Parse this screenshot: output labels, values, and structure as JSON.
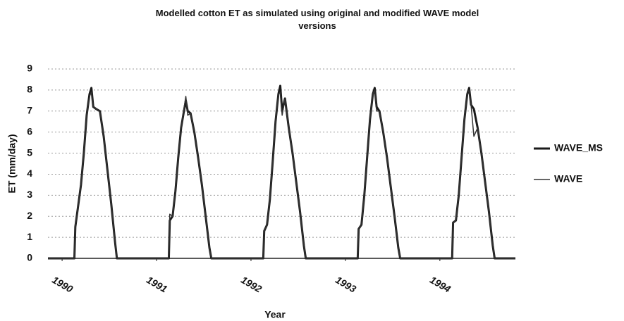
{
  "chart_data": {
    "type": "line",
    "title": "Modelled cotton ET as simulated using original and modified WAVE model versions",
    "y_label": "ET (mm/day)",
    "x_label": "Year",
    "x": [
      1989.85,
      1990.13,
      1990.14,
      1990.17,
      1990.2,
      1990.23,
      1990.26,
      1990.29,
      1990.31,
      1990.33,
      1990.36,
      1990.4,
      1990.44,
      1990.48,
      1990.52,
      1990.56,
      1990.58,
      1991.13,
      1991.14,
      1991.17,
      1991.2,
      1991.23,
      1991.26,
      1991.29,
      1991.31,
      1991.33,
      1991.36,
      1991.4,
      1991.44,
      1991.48,
      1991.52,
      1991.56,
      1991.58,
      1992.13,
      1992.14,
      1992.17,
      1992.2,
      1992.23,
      1992.26,
      1992.29,
      1992.31,
      1992.33,
      1992.36,
      1992.4,
      1992.44,
      1992.48,
      1992.52,
      1992.56,
      1992.58,
      1993.13,
      1993.14,
      1993.17,
      1993.2,
      1993.23,
      1993.26,
      1993.29,
      1993.31,
      1993.33,
      1993.36,
      1993.4,
      1993.44,
      1993.48,
      1993.52,
      1993.56,
      1993.58,
      1994.13,
      1994.14,
      1994.17,
      1994.2,
      1994.23,
      1994.26,
      1994.29,
      1994.31,
      1994.33,
      1994.36,
      1994.4,
      1994.44,
      1994.48,
      1994.52,
      1994.56,
      1994.58,
      1994.8
    ],
    "series": [
      {
        "name": "WAVE_MS",
        "color": "#1a1a1a",
        "values": [
          0,
          0,
          1.5,
          2.5,
          3.5,
          5,
          6.8,
          7.8,
          8.1,
          7.2,
          7.1,
          7.0,
          5.8,
          4.2,
          2.6,
          0.8,
          0,
          0,
          1.8,
          2.0,
          3.2,
          4.8,
          6.2,
          7.0,
          7.5,
          7.0,
          6.9,
          6.0,
          4.8,
          3.5,
          2.0,
          0.5,
          0,
          0,
          1.3,
          1.6,
          2.8,
          4.6,
          6.5,
          7.8,
          8.2,
          7.0,
          7.6,
          6.2,
          5.0,
          3.6,
          2.2,
          0.6,
          0,
          0,
          1.4,
          1.6,
          3.0,
          4.8,
          6.6,
          7.8,
          8.1,
          7.2,
          7.0,
          6.0,
          4.8,
          3.4,
          2.0,
          0.5,
          0,
          0,
          1.7,
          1.8,
          3.0,
          4.8,
          6.6,
          7.8,
          8.1,
          7.3,
          7.1,
          6.2,
          5.0,
          3.6,
          2.2,
          0.6,
          0,
          0
        ]
      },
      {
        "name": "WAVE",
        "color": "#333333",
        "values": [
          0,
          0,
          1.5,
          2.5,
          3.5,
          5,
          6.8,
          7.7,
          7.9,
          7.2,
          7.1,
          7.0,
          5.8,
          4.2,
          2.6,
          0.8,
          0,
          0,
          2.1,
          2.0,
          3.2,
          4.8,
          6.2,
          7.1,
          7.7,
          6.8,
          6.9,
          6.0,
          4.8,
          3.5,
          2.0,
          0.5,
          0,
          0,
          1.3,
          1.6,
          2.8,
          4.6,
          6.5,
          7.8,
          7.9,
          6.8,
          7.6,
          6.2,
          5.0,
          3.6,
          2.2,
          0.6,
          0,
          0,
          1.4,
          1.6,
          3.0,
          4.8,
          6.6,
          7.8,
          8.0,
          7.0,
          7.0,
          6.0,
          4.8,
          3.4,
          2.0,
          0.5,
          0,
          0,
          1.7,
          1.8,
          3.0,
          4.8,
          6.6,
          7.8,
          8.0,
          7.3,
          5.8,
          6.2,
          5.0,
          3.6,
          2.2,
          0.6,
          0,
          0
        ]
      }
    ],
    "xlim": [
      1989.85,
      1994.8
    ],
    "xticks": [
      1990,
      1991,
      1992,
      1993,
      1994
    ],
    "ylim": [
      0,
      9
    ],
    "yticks": [
      0,
      1,
      2,
      3,
      4,
      5,
      6,
      7,
      8,
      9
    ],
    "grid": true,
    "legend": "right"
  }
}
